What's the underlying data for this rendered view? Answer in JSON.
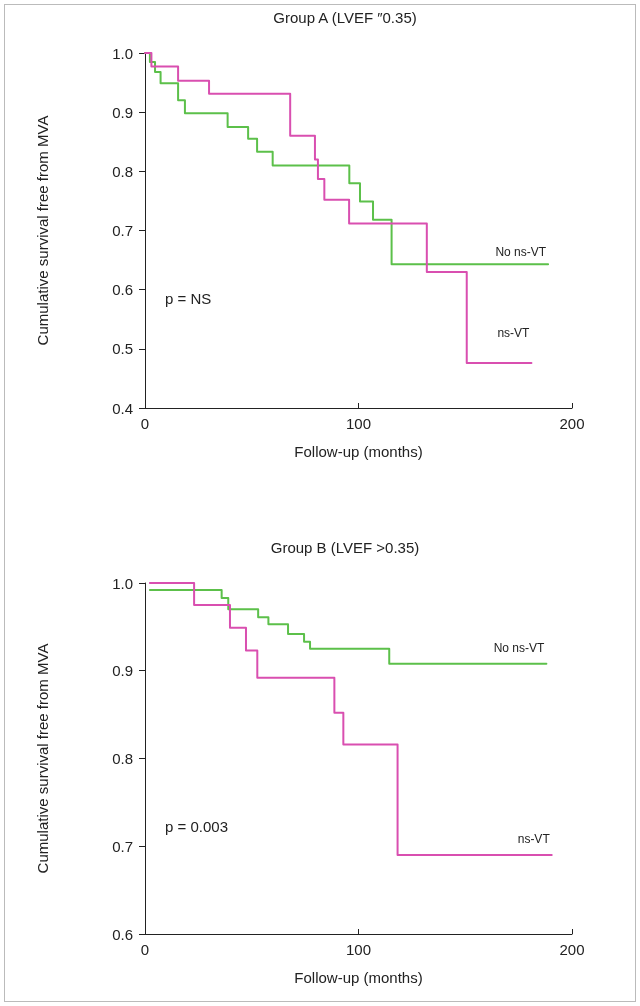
{
  "chart_data": [
    {
      "type": "step",
      "title": "Group A (LVEF ″0.35)",
      "xlabel": "Follow-up (months)",
      "ylabel": "Cumulative survival free from MVA",
      "xlim": [
        0,
        200
      ],
      "xticks": [
        0,
        100,
        200
      ],
      "ylim": [
        0.4,
        1.0
      ],
      "yticks": [
        0.4,
        0.5,
        0.6,
        0.7,
        0.8,
        0.9,
        {
          "value": 1,
          "label": "1.0"
        }
      ],
      "grid": false,
      "legend": false,
      "marker": "none",
      "line_style": "solid",
      "annotations": [
        "p = NS"
      ],
      "series": [
        {
          "name": "No ns-VT",
          "color": "#5cc04a",
          "x": [
            0,
            2.3,
            4.7,
            7.3,
            15.5,
            18.7,
            38.7,
            48.3,
            52.5,
            59.8,
            95.7,
            100.7,
            106.8,
            115.5,
            188.8
          ],
          "values": [
            1.0,
            0.985,
            0.968,
            0.949,
            0.92,
            0.898,
            0.875,
            0.855,
            0.833,
            0.81,
            0.78,
            0.749,
            0.718,
            0.643,
            0.643
          ]
        },
        {
          "name": "ns-VT",
          "color": "#d94fb0",
          "x": [
            0,
            3,
            15.5,
            30,
            68,
            79.6,
            81,
            84,
            95.6,
            132,
            150.7,
            181
          ],
          "values": [
            1.0,
            0.977,
            0.953,
            0.931,
            0.86,
            0.82,
            0.787,
            0.752,
            0.712,
            0.63,
            0.476,
            0.476
          ]
        }
      ]
    },
    {
      "type": "step",
      "title": "Group B (LVEF >0.35)",
      "xlabel": "Follow-up (months)",
      "ylabel": "Cumulative survival free from MVA",
      "xlim": [
        0,
        200
      ],
      "xticks": [
        0,
        100,
        200
      ],
      "ylim": [
        0.6,
        1.0
      ],
      "yticks": [
        0.6,
        0.7,
        0.8,
        0.9,
        {
          "value": 1,
          "label": "1.0"
        }
      ],
      "grid": false,
      "legend": false,
      "marker": "none",
      "line_style": "solid",
      "annotations": [
        "p = 0.003"
      ],
      "series": [
        {
          "name": "No ns-VT",
          "color": "#5cc04a",
          "x": [
            2.3,
            35.9,
            39,
            53,
            57.8,
            67,
            74.5,
            77.3,
            114.4,
            188
          ],
          "values": [
            0.992,
            0.983,
            0.97,
            0.961,
            0.953,
            0.942,
            0.933,
            0.925,
            0.908,
            0.908
          ]
        },
        {
          "name": "ns-VT",
          "color": "#d94fb0",
          "x": [
            2.3,
            23,
            39.8,
            47.3,
            52.6,
            88.7,
            92.9,
            118.3,
            190.5
          ],
          "values": [
            1.0,
            0.975,
            0.949,
            0.923,
            0.892,
            0.852,
            0.816,
            0.69,
            0.69
          ]
        }
      ]
    }
  ]
}
